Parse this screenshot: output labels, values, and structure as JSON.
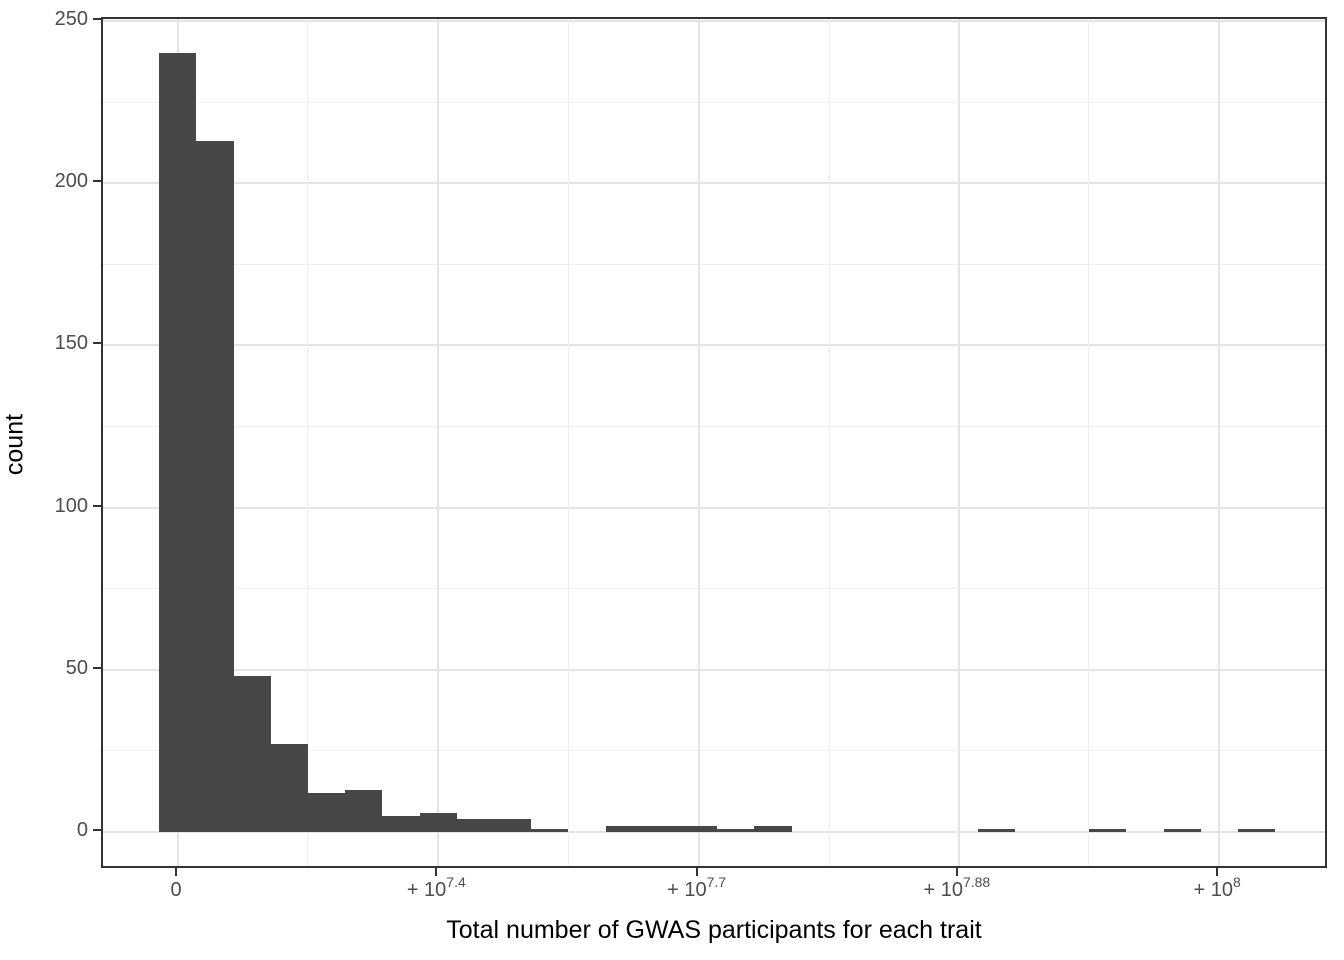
{
  "figure": {
    "x_axis_title": "Total number of GWAS participants for each trait",
    "y_axis_title": "count"
  },
  "chart_data": {
    "type": "bar",
    "subtype": "histogram",
    "title": "",
    "xlabel": "Total number of GWAS participants for each trait",
    "ylabel": "count",
    "legend": "none",
    "grid": "on",
    "bar_color": "#474747",
    "grid_major_color": "#E4E4E4",
    "grid_minor_color": "#EFEFEF",
    "panel_border_color": "#333333",
    "tick_color": "#333333",
    "tick_text_color": "#4D4D4D",
    "axis_title_color": "#000000",
    "background_color": "#FFFFFF",
    "x_axis": {
      "ticks": [
        {
          "base": "0",
          "sup": "",
          "frac": 0.0612
        },
        {
          "base": "+ 10",
          "sup": "7.4",
          "frac": 0.2735
        },
        {
          "base": "+ 10",
          "sup": "7.7",
          "frac": 0.4858
        },
        {
          "base": "+ 10",
          "sup": "7.88",
          "frac": 0.6981
        },
        {
          "base": "+ 10",
          "sup": "8",
          "frac": 0.9104
        }
      ],
      "minor_fracs": [
        0.1672,
        0.3793,
        0.5922,
        0.8042
      ]
    },
    "y_axis": {
      "major_ticks": [
        0,
        50,
        100,
        150,
        200,
        250
      ],
      "minor_ticks": [
        25,
        75,
        125,
        175,
        225
      ],
      "range": [
        -11.7,
        250.6
      ]
    },
    "bins": {
      "start_frac": 0.0459,
      "width_frac": 0.03034,
      "counts": [
        240,
        213,
        48,
        27,
        12,
        13,
        5,
        6,
        4,
        4,
        1,
        0,
        2,
        2,
        2,
        1,
        2,
        0,
        0,
        0,
        0,
        0,
        1,
        0,
        0,
        1,
        0,
        1,
        0,
        1
      ]
    }
  }
}
